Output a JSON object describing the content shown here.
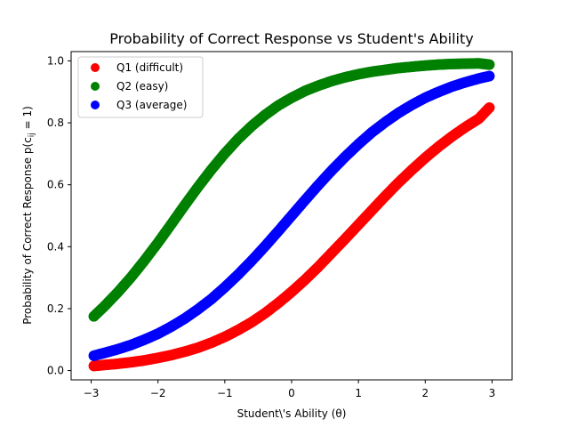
{
  "chart_data": {
    "type": "scatter",
    "title": "Probability of Correct Response vs Student's Ability",
    "xlabel": "Student\\'s Ability (θ)",
    "ylabel": "Probability of Correct Response p(c",
    "ylabel_sub": "ij",
    "ylabel_end": " = 1)",
    "xlim": [
      -3.3,
      3.3
    ],
    "ylim": [
      -0.03,
      1.03
    ],
    "xticks": [
      {
        "value": -3,
        "label": "−3"
      },
      {
        "value": -2,
        "label": "−2"
      },
      {
        "value": -1,
        "label": "−1"
      },
      {
        "value": 0,
        "label": "0"
      },
      {
        "value": 1,
        "label": "1"
      },
      {
        "value": 2,
        "label": "2"
      },
      {
        "value": 3,
        "label": "3"
      }
    ],
    "yticks": [
      {
        "value": 0.0,
        "label": "0.0"
      },
      {
        "value": 0.2,
        "label": "0.2"
      },
      {
        "value": 0.4,
        "label": "0.4"
      },
      {
        "value": 0.6,
        "label": "0.6"
      },
      {
        "value": 0.8,
        "label": "0.8"
      },
      {
        "value": 1.0,
        "label": "1.0"
      }
    ],
    "grid": false,
    "legend_position": "upper-left",
    "x": [
      -2.96,
      -2.8,
      -2.6,
      -2.4,
      -2.2,
      -2.0,
      -1.8,
      -1.6,
      -1.4,
      -1.2,
      -1.0,
      -0.8,
      -0.6,
      -0.4,
      -0.2,
      0.0,
      0.2,
      0.4,
      0.6,
      0.8,
      1.0,
      1.2,
      1.4,
      1.6,
      1.8,
      2.0,
      2.2,
      2.4,
      2.6,
      2.8,
      2.96
    ],
    "series": [
      {
        "name": "Q1 (difficult)",
        "color": "#ff0000",
        "values": [
          0.015,
          0.018,
          0.022,
          0.027,
          0.033,
          0.041,
          0.05,
          0.061,
          0.074,
          0.09,
          0.109,
          0.131,
          0.156,
          0.185,
          0.218,
          0.254,
          0.293,
          0.335,
          0.38,
          0.425,
          0.471,
          0.517,
          0.563,
          0.607,
          0.648,
          0.687,
          0.723,
          0.756,
          0.786,
          0.813,
          0.849
        ]
      },
      {
        "name": "Q2 (easy)",
        "color": "#008000",
        "values": [
          0.175,
          0.208,
          0.253,
          0.302,
          0.356,
          0.413,
          0.473,
          0.534,
          0.593,
          0.649,
          0.701,
          0.748,
          0.789,
          0.825,
          0.856,
          0.881,
          0.903,
          0.92,
          0.935,
          0.947,
          0.957,
          0.965,
          0.971,
          0.977,
          0.981,
          0.985,
          0.988,
          0.99,
          0.991,
          0.992,
          0.988
        ]
      },
      {
        "name": "Q3 (average)",
        "color": "#0000ff",
        "values": [
          0.048,
          0.057,
          0.069,
          0.083,
          0.1,
          0.119,
          0.142,
          0.168,
          0.198,
          0.231,
          0.269,
          0.31,
          0.354,
          0.401,
          0.45,
          0.5,
          0.55,
          0.599,
          0.646,
          0.69,
          0.731,
          0.769,
          0.802,
          0.832,
          0.858,
          0.881,
          0.9,
          0.917,
          0.931,
          0.943,
          0.951
        ]
      }
    ]
  }
}
